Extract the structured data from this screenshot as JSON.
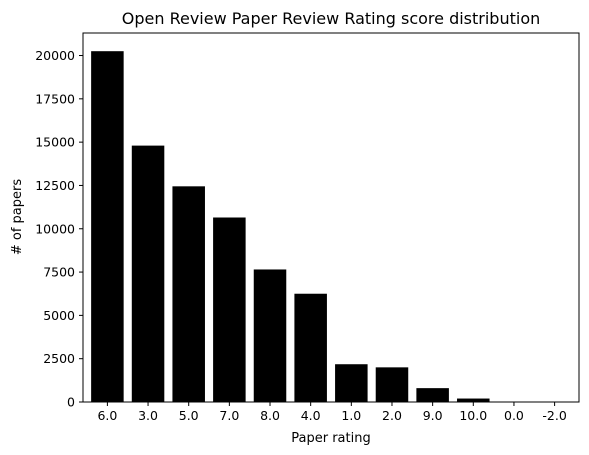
{
  "chart_data": {
    "type": "bar",
    "title": "Open Review Paper Review Rating score distribution",
    "xlabel": "Paper rating",
    "ylabel": "# of papers",
    "categories": [
      "6.0",
      "3.0",
      "5.0",
      "7.0",
      "8.0",
      "4.0",
      "1.0",
      "2.0",
      "9.0",
      "10.0",
      "0.0",
      "-2.0"
    ],
    "values": [
      20250,
      14800,
      12450,
      10650,
      7650,
      6250,
      2180,
      2000,
      800,
      200,
      8,
      3
    ],
    "ylim": [
      0,
      21300
    ],
    "yticks": [
      0,
      2500,
      5000,
      7500,
      10000,
      12500,
      15000,
      17500,
      20000
    ],
    "bar_color": "#000000",
    "grid": false,
    "legend": "none"
  }
}
